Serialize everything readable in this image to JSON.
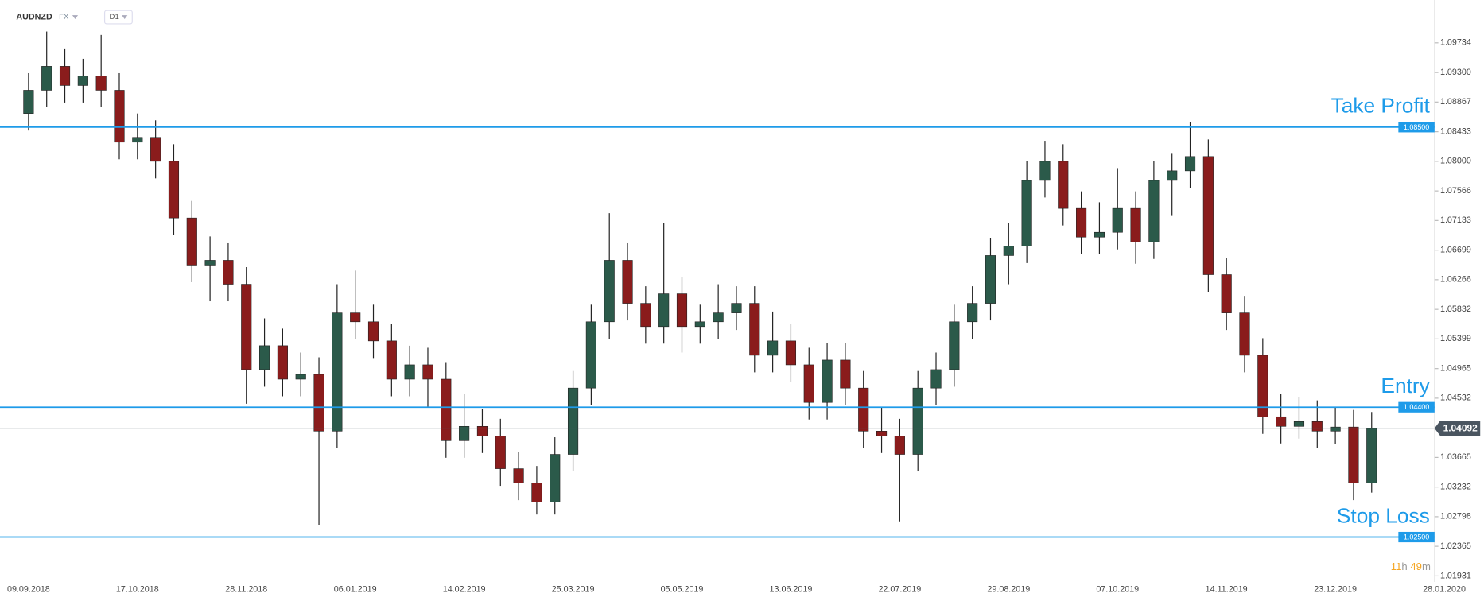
{
  "header": {
    "symbol": "AUDNZD",
    "market": "FX",
    "interval": "D1"
  },
  "countdown": {
    "hours": 11,
    "hours_unit": "h",
    "minutes": 49,
    "minutes_unit": "m"
  },
  "chart_data": {
    "type": "candlestick",
    "categories": [
      "09.09.2018",
      null,
      null,
      null,
      null,
      null,
      "17.10.2018",
      null,
      null,
      null,
      null,
      null,
      "28.11.2018",
      null,
      null,
      null,
      null,
      null,
      "06.01.2019",
      null,
      null,
      null,
      null,
      null,
      "14.02.2019",
      null,
      null,
      null,
      null,
      null,
      "25.03.2019",
      null,
      null,
      null,
      null,
      null,
      "05.05.2019",
      null,
      null,
      null,
      null,
      null,
      "13.06.2019",
      null,
      null,
      null,
      null,
      null,
      "22.07.2019",
      null,
      null,
      null,
      null,
      null,
      "29.08.2019",
      null,
      null,
      null,
      null,
      null,
      "07.10.2019",
      null,
      null,
      null,
      null,
      null,
      "14.11.2019",
      null,
      null,
      null,
      null,
      null,
      "23.12.2019",
      null,
      null,
      null,
      null,
      null,
      "28.01.2020"
    ],
    "open": [
      1.087,
      1.0904,
      1.0939,
      1.0911,
      1.0925,
      1.0904,
      1.0828,
      1.0835,
      1.08,
      1.0717,
      1.0648,
      1.0655,
      1.062,
      1.0495,
      1.053,
      1.0481,
      1.0488,
      1.0405,
      1.0578,
      1.0565,
      1.0537,
      1.0481,
      1.0502,
      1.0481,
      1.0391,
      1.0412,
      1.0398,
      1.035,
      1.0329,
      1.0301,
      1.0371,
      1.0468,
      1.0565,
      1.0655,
      1.0592,
      1.0558,
      1.0606,
      1.0558,
      1.0565,
      1.0578,
      1.0592,
      1.0516,
      1.0537,
      1.0502,
      1.0447,
      1.0509,
      1.0468,
      1.0405,
      1.0398,
      1.0371,
      1.0468,
      1.0495,
      1.0565,
      1.0592,
      1.0662,
      1.0676,
      1.0772,
      1.08,
      1.0731,
      1.0689,
      1.0696,
      1.0731,
      1.0682,
      1.0772,
      1.0786,
      1.0807,
      1.0634,
      1.0578,
      1.0516,
      1.0426,
      1.0412,
      1.0419,
      1.0405,
      1.0411,
      1.0329,
      null,
      null,
      null,
      null
    ],
    "high": [
      1.0929,
      1.099,
      1.0964,
      1.095,
      1.0985,
      1.0929,
      1.087,
      1.086,
      1.0825,
      1.0742,
      1.069,
      1.068,
      1.0645,
      1.057,
      1.0555,
      1.052,
      1.0513,
      1.062,
      1.064,
      1.059,
      1.0562,
      1.053,
      1.0527,
      1.0506,
      1.046,
      1.0437,
      1.0423,
      1.0375,
      1.0354,
      1.0396,
      1.0493,
      1.059,
      1.0724,
      1.068,
      1.0617,
      1.071,
      1.0631,
      1.059,
      1.062,
      1.0617,
      1.0617,
      1.058,
      1.0562,
      1.0527,
      1.0534,
      1.0534,
      1.0493,
      1.044,
      1.0423,
      1.0493,
      1.052,
      1.059,
      1.0617,
      1.0687,
      1.071,
      1.08,
      1.083,
      1.0825,
      1.0756,
      1.074,
      1.079,
      1.0756,
      1.08,
      1.0811,
      1.0858,
      1.0832,
      1.0659,
      1.0603,
      1.0541,
      1.046,
      1.0455,
      1.045,
      1.044,
      1.0436,
      1.0433,
      null,
      null,
      null,
      null
    ],
    "low": [
      1.0845,
      1.0879,
      1.0886,
      1.0886,
      1.0879,
      1.0803,
      1.0803,
      1.0775,
      1.0692,
      1.0623,
      1.0595,
      1.0595,
      1.0445,
      1.047,
      1.0456,
      1.0456,
      1.0267,
      1.038,
      1.054,
      1.0512,
      1.0456,
      1.0456,
      1.044,
      1.0366,
      1.0366,
      1.0373,
      1.0325,
      1.0304,
      1.0283,
      1.0283,
      1.0346,
      1.0443,
      1.054,
      1.0567,
      1.0533,
      1.0533,
      1.052,
      1.0533,
      1.054,
      1.0553,
      1.0491,
      1.0491,
      1.0477,
      1.0422,
      1.0422,
      1.0443,
      1.038,
      1.0373,
      1.0273,
      1.0346,
      1.0443,
      1.047,
      1.054,
      1.0567,
      1.062,
      1.0651,
      1.0747,
      1.0706,
      1.0664,
      1.0664,
      1.0671,
      1.065,
      1.0657,
      1.072,
      1.0761,
      1.0609,
      1.0553,
      1.0491,
      1.0401,
      1.0387,
      1.0394,
      1.038,
      1.0386,
      1.0304,
      1.0315,
      null,
      null,
      null,
      null
    ],
    "close": [
      1.0904,
      1.0939,
      1.0911,
      1.0925,
      1.0904,
      1.0828,
      1.0835,
      1.08,
      1.0717,
      1.0648,
      1.0655,
      1.062,
      1.0495,
      1.053,
      1.0481,
      1.0488,
      1.0405,
      1.0578,
      1.0565,
      1.0537,
      1.0481,
      1.0502,
      1.0481,
      1.0391,
      1.0412,
      1.0398,
      1.035,
      1.0329,
      1.0301,
      1.0371,
      1.0468,
      1.0565,
      1.0655,
      1.0592,
      1.0558,
      1.0606,
      1.0558,
      1.0565,
      1.0578,
      1.0592,
      1.0516,
      1.0537,
      1.0502,
      1.0447,
      1.0509,
      1.0468,
      1.0405,
      1.0398,
      1.0371,
      1.0468,
      1.0495,
      1.0565,
      1.0592,
      1.0662,
      1.0676,
      1.0772,
      1.08,
      1.0731,
      1.0689,
      1.0696,
      1.0731,
      1.0682,
      1.0772,
      1.0786,
      1.0807,
      1.0634,
      1.0578,
      1.0516,
      1.0426,
      1.0412,
      1.0419,
      1.0405,
      1.0411,
      1.0329,
      1.0409,
      null,
      null,
      null,
      null
    ],
    "up_color": "#2b5a4a",
    "down_color": "#8a1c1c",
    "wick_color": "#222222",
    "ylim": [
      1.0187,
      1.1036
    ],
    "yticks": [
      1.09734,
      {
        "value": 1.093,
        "label": "1.09300"
      },
      1.08867,
      1.08433,
      {
        "value": 1.08,
        "label": "1.08000"
      },
      1.07566,
      1.07133,
      1.06699,
      1.06266,
      1.05832,
      1.05399,
      1.04965,
      1.04532,
      1.03665,
      1.03232,
      1.02798,
      1.02365,
      1.01931
    ],
    "levels": [
      {
        "name": "Take Profit",
        "value": 1.085,
        "value_label": "1.08500"
      },
      {
        "name": "Entry",
        "value": 1.044,
        "value_label": "1.04400"
      },
      {
        "name": "Stop Loss",
        "value": 1.025,
        "value_label": "1.02500"
      }
    ],
    "level_color": "#1e9be9",
    "last_price": 1.04092,
    "last_price_color": "#4a5560"
  }
}
